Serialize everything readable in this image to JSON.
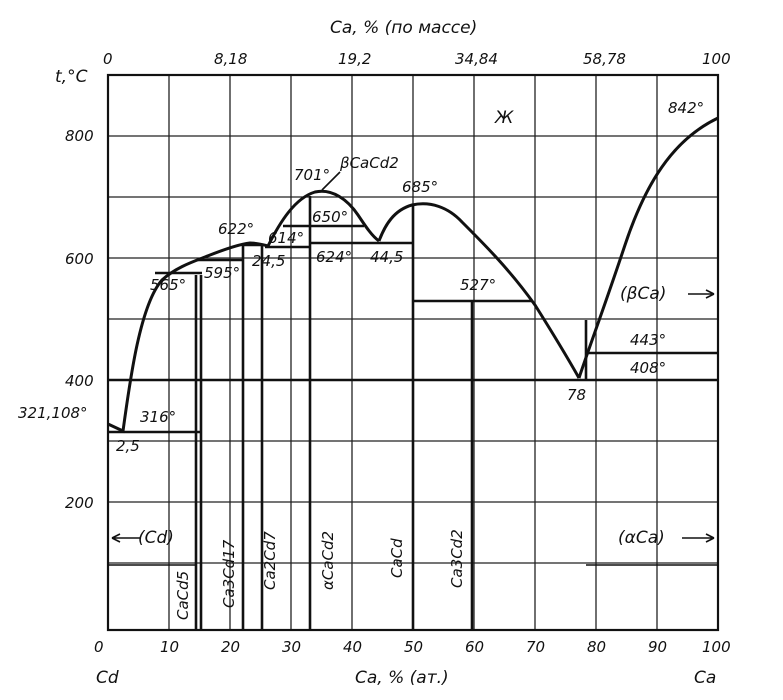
{
  "top_axis": {
    "title": "Ca, % (по массе)",
    "ticks": [
      "0",
      "8,18",
      "19,2",
      "34,84",
      "58,78",
      "100"
    ]
  },
  "y_axis": {
    "title": "t,°C",
    "ticks": [
      "800",
      "600",
      "400",
      "200"
    ]
  },
  "bottom_axis": {
    "title": "Ca, % (ат.)",
    "ticks": [
      "0",
      "10",
      "20",
      "30",
      "40",
      "50",
      "60",
      "70",
      "80",
      "90",
      "100"
    ],
    "left_end": "Cd",
    "right_end": "Ca"
  },
  "labels": {
    "liquid": "Ж",
    "beta_cacd2": "βCaCd2",
    "t701": "701°",
    "t685": "685°",
    "t842": "842°",
    "t622": "622°",
    "t650": "650°",
    "t614": "614°",
    "t624": "624°",
    "c44_5": "44,5",
    "c24_5": "24,5",
    "t595": "595°",
    "t565": "565°",
    "t527": "527°",
    "beta_ca": "(βCa)",
    "t443": "443°",
    "t408": "408°",
    "c78": "78",
    "t321": "321,108°",
    "t316": "316°",
    "c2_5": "2,5",
    "cd_phase": "(Cd)",
    "alpha_ca": "(αCa)"
  },
  "compounds": [
    "CaCd5",
    "Ca3Cd17",
    "Ca2Cd7",
    "αCaCd2",
    "CaCd",
    "Ca3Cd2"
  ],
  "colors": {
    "ink": "#111111",
    "background": "#ffffff"
  }
}
